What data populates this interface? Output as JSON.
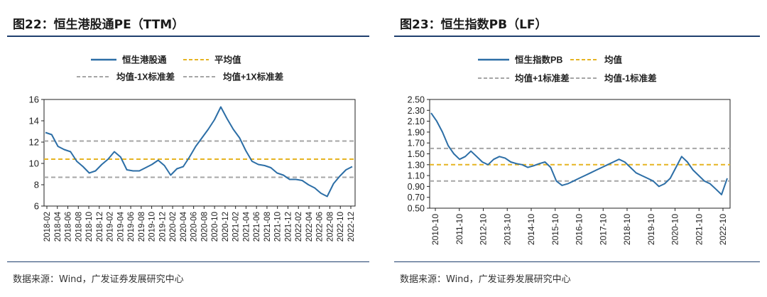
{
  "charts": {
    "left": {
      "title": "图22：恒生港股通PE（TTM）",
      "source": "数据来源：Wind，广发证券发展研究中心"
    },
    "right": {
      "title": "图23：恒生指数PB（LF）",
      "source": "数据来源：Wind，广发证券发展研究中心"
    }
  },
  "colors": {
    "line": "#2c6ea6",
    "mean": "#e6b422",
    "std": "#a6a6a6",
    "rule": "#1f3f6e"
  },
  "chart_data": [
    {
      "type": "line",
      "title": "恒生港股通PE（TTM）",
      "ylim": [
        6,
        16
      ],
      "yticks": [
        "6",
        "8",
        "10",
        "12",
        "14",
        "16"
      ],
      "xlabels": [
        "2018-02",
        "2018-04",
        "2018-06",
        "2018-08",
        "2018-10",
        "2018-12",
        "2019-02",
        "2019-04",
        "2019-06",
        "2019-08",
        "2019-10",
        "2019-12",
        "2020-02",
        "2020-04",
        "2020-06",
        "2020-08",
        "2020-10",
        "2020-12",
        "2021-02",
        "2021-04",
        "2021-06",
        "2021-08",
        "2021-10",
        "2021-12",
        "2022-02",
        "2022-04",
        "2022-06",
        "2022-08",
        "2022-10",
        "2022-12"
      ],
      "legend": {
        "series": "恒生港股通",
        "mean": "平均值",
        "minus": "均值-1X标准差",
        "plus": "均值+1X标准差"
      },
      "mean": 10.4,
      "std_plus": 12.1,
      "std_minus": 8.7,
      "series_values": [
        12.9,
        12.7,
        11.6,
        11.3,
        11.1,
        10.2,
        9.7,
        9.1,
        9.3,
        9.9,
        10.4,
        11.1,
        10.6,
        9.4,
        9.3,
        9.3,
        9.6,
        9.9,
        10.3,
        9.8,
        8.9,
        9.5,
        9.7,
        10.6,
        11.6,
        12.4,
        13.2,
        14.1,
        15.3,
        14.2,
        13.2,
        12.4,
        11.2,
        10.2,
        9.9,
        9.8,
        9.6,
        9.1,
        8.9,
        8.5,
        8.5,
        8.4,
        8.0,
        7.7,
        7.2,
        6.9,
        8.1,
        8.8,
        9.4,
        9.7
      ]
    },
    {
      "type": "line",
      "title": "恒生指数PB（LF）",
      "ylim": [
        0.5,
        2.5
      ],
      "yticks": [
        "0.50",
        "0.70",
        "0.90",
        "1.10",
        "1.30",
        "1.50",
        "1.70",
        "1.90",
        "2.10",
        "2.30",
        "2.50"
      ],
      "xlabels": [
        "2010-10",
        "2011-10",
        "2012-10",
        "2013-10",
        "2014-10",
        "2015-10",
        "2016-10",
        "2017-10",
        "2018-10",
        "2019-10",
        "2020-10",
        "2021-10",
        "2022-10"
      ],
      "legend": {
        "series": "恒生指数PB",
        "mean": "均值",
        "plus": "均值+1标准差",
        "minus": "均值-1标准差"
      },
      "mean": 1.3,
      "std_plus": 1.6,
      "std_minus": 1.0,
      "series_values": [
        2.25,
        2.1,
        1.9,
        1.65,
        1.5,
        1.4,
        1.45,
        1.55,
        1.45,
        1.35,
        1.3,
        1.4,
        1.45,
        1.42,
        1.35,
        1.32,
        1.3,
        1.25,
        1.28,
        1.32,
        1.35,
        1.25,
        1.0,
        0.92,
        0.95,
        1.0,
        1.05,
        1.1,
        1.15,
        1.2,
        1.25,
        1.3,
        1.35,
        1.4,
        1.35,
        1.25,
        1.15,
        1.1,
        1.05,
        1.0,
        0.9,
        0.95,
        1.05,
        1.25,
        1.45,
        1.35,
        1.2,
        1.1,
        1.0,
        0.95,
        0.85,
        0.75,
        1.05
      ]
    }
  ]
}
